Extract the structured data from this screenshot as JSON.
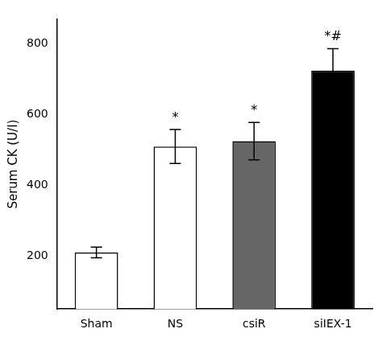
{
  "chart_data": {
    "type": "bar",
    "categories": [
      "Sham",
      "NS",
      "csiR",
      "siIEX-1"
    ],
    "values": [
      210,
      510,
      525,
      725
    ],
    "errors": [
      15,
      48,
      53,
      62
    ],
    "colors": [
      "#ffffff",
      "#ffffff",
      "#666666",
      "#000000"
    ],
    "annotations": [
      null,
      "*",
      "*",
      "*#"
    ],
    "ylabel": "Serum CK (U/I)",
    "ylim": [
      50,
      870
    ],
    "yticks": [
      200,
      400,
      600,
      800
    ],
    "grid": false
  }
}
